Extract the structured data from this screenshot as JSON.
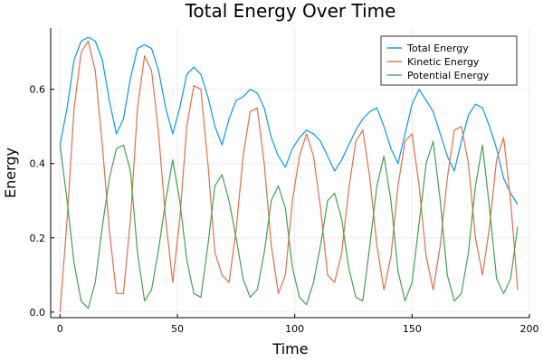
{
  "chart_data": {
    "type": "line",
    "title": "Total Energy Over Time",
    "xlabel": "Time",
    "ylabel": "Energy",
    "xlim": [
      -4,
      200
    ],
    "ylim": [
      -0.015,
      0.765
    ],
    "xticks": [
      0,
      50,
      100,
      150,
      200
    ],
    "xtick_labels": [
      "0",
      "50",
      "100",
      "150",
      "200"
    ],
    "yticks": [
      0.0,
      0.2,
      0.4,
      0.6
    ],
    "ytick_labels": [
      "0.0",
      "0.2",
      "0.4",
      "0.6"
    ],
    "grid": true,
    "legend_position": "top-right",
    "series": [
      {
        "name": "Total Energy",
        "color": "#009af9",
        "x": [
          0,
          3,
          6,
          9,
          12,
          15,
          18,
          21,
          24,
          27,
          30,
          33,
          36,
          39,
          42,
          45,
          48,
          51,
          54,
          57,
          60,
          63,
          66,
          69,
          72,
          75,
          78,
          81,
          84,
          87,
          90,
          93,
          96,
          99,
          102,
          105,
          108,
          111,
          114,
          117,
          120,
          123,
          126,
          129,
          132,
          135,
          138,
          141,
          144,
          147,
          150,
          153,
          156,
          159,
          162,
          165,
          168,
          171,
          174,
          177,
          180,
          183,
          186,
          189,
          192,
          195
        ],
        "values": [
          0.45,
          0.55,
          0.68,
          0.73,
          0.74,
          0.73,
          0.68,
          0.57,
          0.48,
          0.52,
          0.63,
          0.71,
          0.72,
          0.71,
          0.65,
          0.55,
          0.48,
          0.55,
          0.64,
          0.66,
          0.64,
          0.58,
          0.5,
          0.45,
          0.52,
          0.57,
          0.58,
          0.6,
          0.59,
          0.55,
          0.47,
          0.42,
          0.39,
          0.44,
          0.47,
          0.49,
          0.48,
          0.46,
          0.42,
          0.38,
          0.41,
          0.45,
          0.49,
          0.52,
          0.54,
          0.55,
          0.5,
          0.44,
          0.4,
          0.48,
          0.56,
          0.6,
          0.57,
          0.54,
          0.48,
          0.42,
          0.38,
          0.46,
          0.53,
          0.56,
          0.55,
          0.5,
          0.44,
          0.36,
          0.32,
          0.29
        ]
      },
      {
        "name": "Kinetic Energy",
        "color": "#e26f46",
        "x": [
          0,
          3,
          6,
          9,
          12,
          15,
          18,
          21,
          24,
          27,
          30,
          33,
          36,
          39,
          42,
          45,
          48,
          51,
          54,
          57,
          60,
          63,
          66,
          69,
          72,
          75,
          78,
          81,
          84,
          87,
          90,
          93,
          96,
          99,
          102,
          105,
          108,
          111,
          114,
          117,
          120,
          123,
          126,
          129,
          132,
          135,
          138,
          141,
          144,
          147,
          150,
          153,
          156,
          159,
          162,
          165,
          168,
          171,
          174,
          177,
          180,
          183,
          186,
          189,
          192,
          195
        ],
        "values": [
          0.0,
          0.25,
          0.55,
          0.7,
          0.73,
          0.65,
          0.45,
          0.22,
          0.05,
          0.05,
          0.25,
          0.55,
          0.69,
          0.65,
          0.48,
          0.25,
          0.08,
          0.25,
          0.5,
          0.61,
          0.6,
          0.4,
          0.16,
          0.1,
          0.08,
          0.22,
          0.42,
          0.54,
          0.55,
          0.4,
          0.18,
          0.05,
          0.1,
          0.3,
          0.42,
          0.48,
          0.42,
          0.28,
          0.1,
          0.08,
          0.16,
          0.33,
          0.46,
          0.49,
          0.36,
          0.18,
          0.06,
          0.15,
          0.34,
          0.46,
          0.48,
          0.34,
          0.15,
          0.06,
          0.18,
          0.36,
          0.49,
          0.5,
          0.4,
          0.2,
          0.1,
          0.23,
          0.41,
          0.47,
          0.3,
          0.06
        ]
      },
      {
        "name": "Potential Energy",
        "color": "#3ea44e",
        "x": [
          0,
          3,
          6,
          9,
          12,
          15,
          18,
          21,
          24,
          27,
          30,
          33,
          36,
          39,
          42,
          45,
          48,
          51,
          54,
          57,
          60,
          63,
          66,
          69,
          72,
          75,
          78,
          81,
          84,
          87,
          90,
          93,
          96,
          99,
          102,
          105,
          108,
          111,
          114,
          117,
          120,
          123,
          126,
          129,
          132,
          135,
          138,
          141,
          144,
          147,
          150,
          153,
          156,
          159,
          162,
          165,
          168,
          171,
          174,
          177,
          180,
          183,
          186,
          189,
          192,
          195
        ],
        "values": [
          0.45,
          0.3,
          0.13,
          0.03,
          0.01,
          0.08,
          0.23,
          0.36,
          0.44,
          0.45,
          0.38,
          0.16,
          0.03,
          0.06,
          0.17,
          0.3,
          0.41,
          0.3,
          0.14,
          0.05,
          0.04,
          0.18,
          0.34,
          0.37,
          0.3,
          0.2,
          0.09,
          0.04,
          0.06,
          0.16,
          0.3,
          0.34,
          0.28,
          0.12,
          0.04,
          0.02,
          0.08,
          0.18,
          0.3,
          0.32,
          0.25,
          0.12,
          0.04,
          0.03,
          0.18,
          0.34,
          0.42,
          0.3,
          0.11,
          0.03,
          0.08,
          0.24,
          0.4,
          0.46,
          0.3,
          0.1,
          0.03,
          0.05,
          0.16,
          0.34,
          0.45,
          0.28,
          0.09,
          0.05,
          0.09,
          0.23
        ]
      }
    ]
  }
}
